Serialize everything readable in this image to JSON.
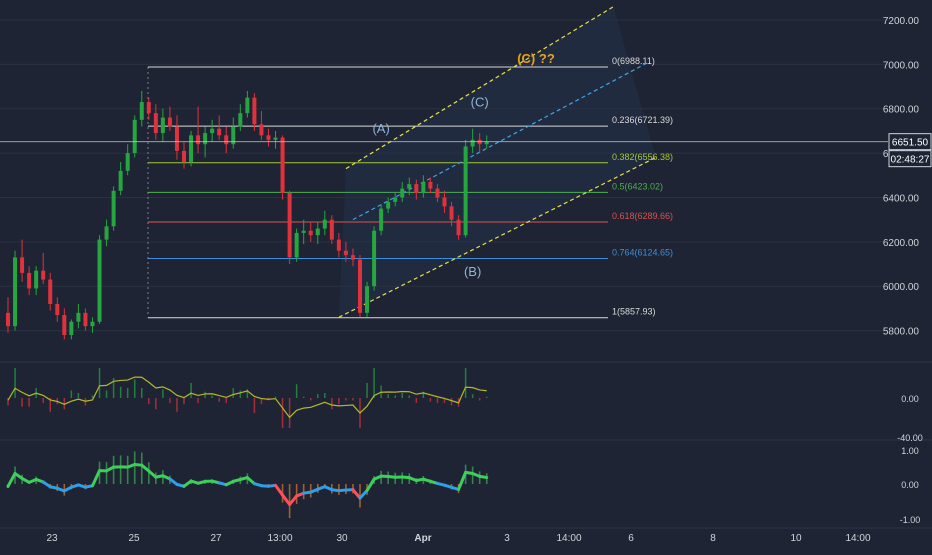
{
  "colors": {
    "background": "#1e2433",
    "grid": "#2a3142",
    "axis_text": "#d1d4dc",
    "candle_up": "#26a641",
    "candle_down": "#e0323d",
    "fib_white": "#d9d9d9",
    "fib_lime": "#a4c639",
    "fib_green": "#4caf50",
    "fib_red": "#d9534f",
    "fib_blue": "#3d8fd9",
    "channel_yellow": "#e6e04a",
    "channel_blue": "#3fa3e6",
    "wave_label": "#8fb4d9",
    "target_label": "#e6a21f",
    "price_tag_bg": "#1e2433"
  },
  "chart_data": [
    {
      "type": "candlestick",
      "x_axis_labels": [
        "23",
        "25",
        "27",
        "13:00",
        "30",
        "Apr",
        "3",
        "14:00",
        "6",
        "8",
        "10",
        "14:00"
      ],
      "y_ticks": [
        5800.0,
        6000.0,
        6200.0,
        6400.0,
        6600.0,
        6800.0,
        7000.0,
        7200.0
      ],
      "ylim": [
        5735,
        7245
      ],
      "last_price": "6651.50",
      "countdown": "02:48:27",
      "candles": [
        [
          5880,
          5950,
          5790,
          5820
        ],
        [
          5820,
          6160,
          5800,
          6130
        ],
        [
          6130,
          6210,
          6020,
          6060
        ],
        [
          6060,
          6090,
          5960,
          5990
        ],
        [
          5990,
          6090,
          5960,
          6070
        ],
        [
          6070,
          6150,
          6010,
          6030
        ],
        [
          6030,
          6060,
          5890,
          5920
        ],
        [
          5920,
          5950,
          5840,
          5870
        ],
        [
          5870,
          5900,
          5760,
          5780
        ],
        [
          5780,
          5850,
          5760,
          5840
        ],
        [
          5840,
          5920,
          5810,
          5880
        ],
        [
          5880,
          5900,
          5800,
          5820
        ],
        [
          5820,
          5860,
          5790,
          5840
        ],
        [
          5840,
          6230,
          5830,
          6210
        ],
        [
          6210,
          6300,
          6180,
          6270
        ],
        [
          6270,
          6450,
          6250,
          6430
        ],
        [
          6430,
          6560,
          6410,
          6520
        ],
        [
          6520,
          6640,
          6500,
          6600
        ],
        [
          6600,
          6770,
          6580,
          6750
        ],
        [
          6750,
          6880,
          6720,
          6830
        ],
        [
          6830,
          6850,
          6750,
          6780
        ],
        [
          6780,
          6820,
          6660,
          6690
        ],
        [
          6690,
          6800,
          6650,
          6760
        ],
        [
          6760,
          6810,
          6700,
          6720
        ],
        [
          6720,
          6770,
          6570,
          6610
        ],
        [
          6610,
          6650,
          6530,
          6560
        ],
        [
          6560,
          6700,
          6540,
          6680
        ],
        [
          6680,
          6810,
          6600,
          6640
        ],
        [
          6640,
          6720,
          6580,
          6690
        ],
        [
          6690,
          6750,
          6650,
          6710
        ],
        [
          6710,
          6770,
          6660,
          6680
        ],
        [
          6680,
          6720,
          6600,
          6640
        ],
        [
          6640,
          6760,
          6620,
          6720
        ],
        [
          6720,
          6820,
          6700,
          6780
        ],
        [
          6780,
          6880,
          6760,
          6850
        ],
        [
          6850,
          6870,
          6700,
          6730
        ],
        [
          6730,
          6790,
          6660,
          6680
        ],
        [
          6680,
          6710,
          6630,
          6660
        ],
        [
          6660,
          6700,
          6620,
          6670
        ],
        [
          6670,
          6680,
          6390,
          6420
        ],
        [
          6420,
          6430,
          6100,
          6130
        ],
        [
          6130,
          6260,
          6110,
          6240
        ],
        [
          6240,
          6300,
          6190,
          6250
        ],
        [
          6250,
          6290,
          6200,
          6230
        ],
        [
          6230,
          6290,
          6190,
          6260
        ],
        [
          6260,
          6340,
          6230,
          6300
        ],
        [
          6300,
          6320,
          6190,
          6210
        ],
        [
          6210,
          6240,
          6130,
          6160
        ],
        [
          6160,
          6200,
          6110,
          6140
        ],
        [
          6140,
          6170,
          6090,
          6120
        ],
        [
          6120,
          6140,
          5860,
          5880
        ],
        [
          5880,
          6020,
          5860,
          6000
        ],
        [
          6000,
          6270,
          5980,
          6250
        ],
        [
          6250,
          6370,
          6230,
          6350
        ],
        [
          6350,
          6400,
          6330,
          6380
        ],
        [
          6380,
          6420,
          6360,
          6400
        ],
        [
          6400,
          6470,
          6380,
          6440
        ],
        [
          6440,
          6490,
          6410,
          6460
        ],
        [
          6460,
          6480,
          6390,
          6420
        ],
        [
          6420,
          6500,
          6400,
          6470
        ],
        [
          6470,
          6490,
          6420,
          6440
        ],
        [
          6440,
          6460,
          6380,
          6400
        ],
        [
          6400,
          6430,
          6330,
          6360
        ],
        [
          6360,
          6380,
          6270,
          6300
        ],
        [
          6300,
          6320,
          6210,
          6230
        ],
        [
          6230,
          6660,
          6220,
          6630
        ],
        [
          6630,
          6710,
          6600,
          6660
        ],
        [
          6660,
          6690,
          6600,
          6640
        ],
        [
          6640,
          6680,
          6620,
          6650
        ]
      ]
    },
    {
      "type": "fibonacci",
      "levels": [
        {
          "label": "0(6988.11)",
          "value": 6988.11,
          "color": "fib_white"
        },
        {
          "label": "0.236(6721.39)",
          "value": 6721.39,
          "color": "fib_white"
        },
        {
          "label": "0.382(6556.38)",
          "value": 6556.38,
          "color": "fib_lime"
        },
        {
          "label": "0.5(6423.02)",
          "value": 6423.02,
          "color": "fib_green"
        },
        {
          "label": "0.618(6289.66)",
          "value": 6289.66,
          "color": "fib_red"
        },
        {
          "label": "0.764(6124.65)",
          "value": 6124.65,
          "color": "fib_blue"
        },
        {
          "label": "1(5857.93)",
          "value": 5857.93,
          "color": "fib_white"
        }
      ]
    },
    {
      "type": "annotations",
      "wave_labels": [
        {
          "text": "(A)",
          "index": 53,
          "value": 6690,
          "color": "wave_label"
        },
        {
          "text": "(B)",
          "index": 66,
          "value": 6045,
          "color": "wave_label"
        },
        {
          "text": "(C)",
          "index": 67,
          "value": 6810,
          "color": "wave_label"
        },
        {
          "text": "(C) ??",
          "index": 75,
          "value": 7005,
          "color": "target_label"
        }
      ]
    },
    {
      "type": "bar",
      "name": "volume-oscillator",
      "y_ticks": [
        "0.00",
        "-40.00"
      ]
    },
    {
      "type": "bar",
      "name": "momentum-histogram",
      "y_ticks": [
        "1.00",
        "0.00",
        "-1.00"
      ]
    }
  ]
}
